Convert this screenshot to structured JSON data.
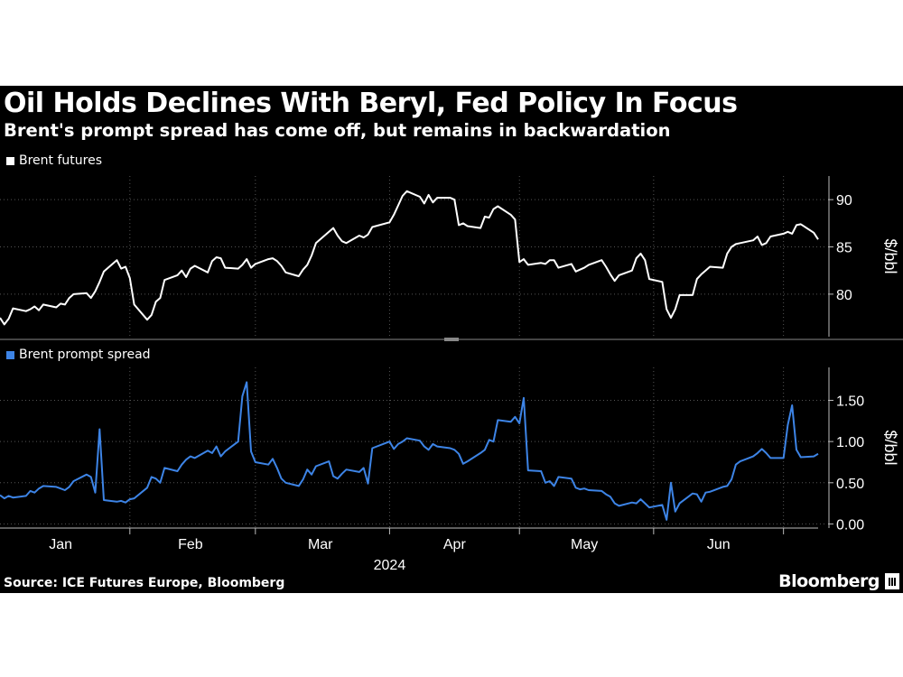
{
  "title": "Oil Holds Declines With Beryl, Fed Policy In Focus",
  "subtitle": "Brent's prompt spread has come off, but remains in backwardation",
  "source": "Source: ICE Futures Europe, Bloomberg",
  "brand": "Bloomberg",
  "colors": {
    "background": "#000000",
    "series_futures": "#ffffff",
    "series_spread": "#3d84e6",
    "grid": "#555555"
  },
  "chart_data": [
    {
      "type": "line",
      "legend": "Brent futures",
      "ylabel": "$/bbl",
      "ylim": [
        75.5,
        92.5
      ],
      "yticks": [
        80,
        85,
        90
      ],
      "grid": true,
      "legend_placement": "top-left",
      "x": [
        "2024-01-02",
        "2024-01-03",
        "2024-01-04",
        "2024-01-05",
        "2024-01-08",
        "2024-01-09",
        "2024-01-10",
        "2024-01-11",
        "2024-01-12",
        "2024-01-15",
        "2024-01-16",
        "2024-01-17",
        "2024-01-18",
        "2024-01-19",
        "2024-01-22",
        "2024-01-23",
        "2024-01-24",
        "2024-01-25",
        "2024-01-26",
        "2024-01-29",
        "2024-01-30",
        "2024-01-31",
        "2024-02-01",
        "2024-02-02",
        "2024-02-05",
        "2024-02-06",
        "2024-02-07",
        "2024-02-08",
        "2024-02-09",
        "2024-02-12",
        "2024-02-13",
        "2024-02-14",
        "2024-02-15",
        "2024-02-16",
        "2024-02-19",
        "2024-02-20",
        "2024-02-21",
        "2024-02-22",
        "2024-02-23",
        "2024-02-26",
        "2024-02-27",
        "2024-02-28",
        "2024-02-29",
        "2024-03-01",
        "2024-03-04",
        "2024-03-05",
        "2024-03-06",
        "2024-03-07",
        "2024-03-08",
        "2024-03-11",
        "2024-03-12",
        "2024-03-13",
        "2024-03-14",
        "2024-03-15",
        "2024-03-18",
        "2024-03-19",
        "2024-03-20",
        "2024-03-21",
        "2024-03-22",
        "2024-03-25",
        "2024-03-26",
        "2024-03-27",
        "2024-03-28",
        "2024-04-01",
        "2024-04-02",
        "2024-04-03",
        "2024-04-04",
        "2024-04-05",
        "2024-04-08",
        "2024-04-09",
        "2024-04-10",
        "2024-04-11",
        "2024-04-12",
        "2024-04-15",
        "2024-04-16",
        "2024-04-17",
        "2024-04-18",
        "2024-04-19",
        "2024-04-22",
        "2024-04-23",
        "2024-04-24",
        "2024-04-25",
        "2024-04-26",
        "2024-04-29",
        "2024-04-30",
        "2024-05-01",
        "2024-05-02",
        "2024-05-03",
        "2024-05-06",
        "2024-05-07",
        "2024-05-08",
        "2024-05-09",
        "2024-05-10",
        "2024-05-13",
        "2024-05-14",
        "2024-05-15",
        "2024-05-16",
        "2024-05-17",
        "2024-05-20",
        "2024-05-21",
        "2024-05-22",
        "2024-05-23",
        "2024-05-24",
        "2024-05-27",
        "2024-05-28",
        "2024-05-29",
        "2024-05-30",
        "2024-05-31",
        "2024-06-03",
        "2024-06-04",
        "2024-06-05",
        "2024-06-06",
        "2024-06-07",
        "2024-06-10",
        "2024-06-11",
        "2024-06-12",
        "2024-06-13",
        "2024-06-14",
        "2024-06-17",
        "2024-06-18",
        "2024-06-19",
        "2024-06-20",
        "2024-06-21",
        "2024-06-24",
        "2024-06-25",
        "2024-06-26",
        "2024-06-27",
        "2024-06-28",
        "2024-07-01",
        "2024-07-02",
        "2024-07-03",
        "2024-07-04",
        "2024-07-05",
        "2024-07-08",
        "2024-07-09"
      ],
      "values": [
        77.5,
        76.8,
        77.4,
        78.5,
        78.2,
        78.4,
        78.7,
        78.3,
        78.9,
        78.6,
        79.0,
        78.9,
        79.6,
        80.0,
        80.1,
        79.6,
        80.3,
        81.3,
        82.4,
        83.6,
        82.7,
        82.9,
        81.7,
        78.9,
        77.3,
        77.8,
        79.2,
        79.6,
        81.5,
        82.0,
        82.5,
        81.8,
        82.7,
        83.0,
        82.3,
        83.5,
        83.9,
        83.8,
        82.8,
        82.7,
        83.1,
        83.7,
        82.8,
        83.2,
        83.7,
        83.8,
        83.5,
        83.0,
        82.3,
        81.9,
        82.6,
        83.1,
        84.1,
        85.4,
        86.6,
        87.0,
        86.2,
        85.6,
        85.4,
        86.2,
        86.0,
        86.3,
        87.1,
        87.6,
        88.4,
        89.4,
        90.4,
        90.9,
        90.3,
        89.6,
        90.5,
        89.7,
        90.2,
        90.2,
        90.0,
        87.3,
        87.5,
        87.2,
        87.0,
        88.2,
        88.1,
        89.0,
        89.3,
        88.4,
        87.9,
        83.4,
        83.7,
        83.1,
        83.3,
        83.2,
        83.6,
        83.6,
        82.8,
        83.2,
        82.4,
        82.6,
        82.8,
        83.1,
        83.6,
        82.9,
        82.1,
        81.4,
        82.0,
        82.5,
        83.8,
        84.3,
        83.6,
        81.6,
        81.3,
        78.4,
        77.5,
        78.4,
        79.9,
        79.9,
        81.6,
        82.1,
        82.5,
        82.9,
        82.8,
        84.3,
        85.0,
        85.3,
        85.4,
        85.7,
        86.1,
        85.2,
        85.4,
        86.1,
        86.4,
        86.6,
        86.4,
        87.3,
        87.4,
        86.5,
        85.8
      ],
      "ticks_x": [
        "Jan",
        "Feb",
        "Mar",
        "Apr",
        "May",
        "Jun"
      ],
      "year_label": "2024"
    },
    {
      "type": "line",
      "legend": "Brent prompt spread",
      "ylabel": "$/bbl",
      "ylim": [
        -0.05,
        1.9
      ],
      "yticks": [
        "0.00",
        "0.50",
        "1.00",
        "1.50"
      ],
      "grid": true,
      "legend_placement": "top-left",
      "values": [
        0.35,
        0.31,
        0.34,
        0.32,
        0.34,
        0.4,
        0.38,
        0.43,
        0.46,
        0.45,
        0.43,
        0.41,
        0.45,
        0.52,
        0.6,
        0.57,
        0.38,
        1.15,
        0.29,
        0.27,
        0.28,
        0.26,
        0.3,
        0.31,
        0.44,
        0.57,
        0.55,
        0.5,
        0.68,
        0.64,
        0.72,
        0.78,
        0.82,
        0.8,
        0.89,
        0.86,
        0.94,
        0.82,
        0.88,
        1.0,
        1.55,
        1.72,
        0.88,
        0.75,
        0.72,
        0.79,
        0.68,
        0.55,
        0.5,
        0.46,
        0.54,
        0.66,
        0.6,
        0.7,
        0.76,
        0.58,
        0.55,
        0.61,
        0.66,
        0.63,
        0.68,
        0.49,
        0.92,
        1.0,
        0.91,
        0.97,
        1.0,
        1.04,
        1.01,
        0.94,
        0.9,
        0.97,
        0.94,
        0.92,
        0.9,
        0.85,
        0.73,
        0.76,
        0.86,
        0.9,
        1.02,
        1.0,
        1.26,
        1.24,
        1.3,
        1.22,
        1.53,
        0.65,
        0.64,
        0.5,
        0.52,
        0.46,
        0.57,
        0.55,
        0.44,
        0.42,
        0.43,
        0.41,
        0.4,
        0.36,
        0.33,
        0.25,
        0.22,
        0.26,
        0.25,
        0.3,
        0.25,
        0.2,
        0.23,
        0.05,
        0.5,
        0.15,
        0.25,
        0.37,
        0.36,
        0.27,
        0.38,
        0.39,
        0.45,
        0.46,
        0.54,
        0.72,
        0.76,
        0.82,
        0.86,
        0.91,
        0.86,
        0.8,
        0.8,
        1.2,
        1.44,
        0.9,
        0.81,
        0.82,
        0.85,
        0.82,
        0.76
      ]
    }
  ]
}
